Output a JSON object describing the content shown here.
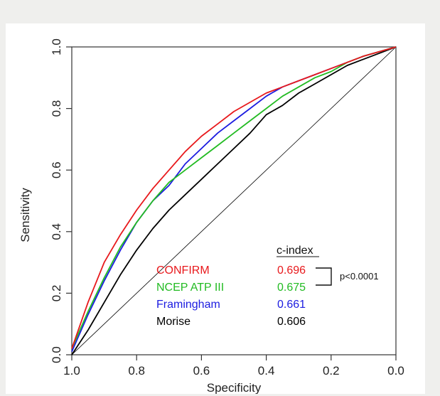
{
  "chart_data": {
    "type": "line",
    "xlabel": "Specificity",
    "ylabel": "Sensitivity",
    "xlim": [
      1.0,
      0.0
    ],
    "ylim": [
      0.0,
      1.0
    ],
    "x_reversed": true,
    "grid": false,
    "xticks": [
      "1.0",
      "0.8",
      "0.6",
      "0.4",
      "0.2",
      "0.0"
    ],
    "yticks": [
      "0.0",
      "0.2",
      "0.4",
      "0.6",
      "0.8",
      "1.0"
    ],
    "series": [
      {
        "name": "CONFIRM",
        "cindex": "0.696",
        "color": "#e8191c",
        "x": [
          1.0,
          0.95,
          0.9,
          0.85,
          0.8,
          0.75,
          0.7,
          0.65,
          0.6,
          0.55,
          0.5,
          0.45,
          0.4,
          0.35,
          0.3,
          0.25,
          0.2,
          0.15,
          0.1,
          0.05,
          0.0
        ],
        "y": [
          0.02,
          0.17,
          0.3,
          0.39,
          0.47,
          0.54,
          0.6,
          0.66,
          0.71,
          0.75,
          0.79,
          0.82,
          0.85,
          0.87,
          0.89,
          0.91,
          0.93,
          0.95,
          0.97,
          0.985,
          1.0
        ]
      },
      {
        "name": "NCEP ATP III",
        "cindex": "0.675",
        "color": "#22bb22",
        "x": [
          1.0,
          0.95,
          0.9,
          0.85,
          0.8,
          0.75,
          0.7,
          0.65,
          0.6,
          0.55,
          0.5,
          0.45,
          0.4,
          0.35,
          0.3,
          0.25,
          0.2,
          0.15,
          0.1,
          0.05,
          0.0
        ],
        "y": [
          0.02,
          0.14,
          0.25,
          0.35,
          0.43,
          0.5,
          0.56,
          0.6,
          0.64,
          0.68,
          0.72,
          0.76,
          0.8,
          0.84,
          0.87,
          0.9,
          0.92,
          0.95,
          0.97,
          0.985,
          1.0
        ]
      },
      {
        "name": "Framingham",
        "cindex": "0.661",
        "color": "#1c1ce0",
        "x": [
          1.0,
          0.95,
          0.9,
          0.85,
          0.8,
          0.75,
          0.7,
          0.65,
          0.6,
          0.55,
          0.5,
          0.45,
          0.4,
          0.35,
          0.3,
          0.25,
          0.2,
          0.15,
          0.1,
          0.05,
          0.0
        ],
        "y": [
          0.01,
          0.13,
          0.24,
          0.34,
          0.43,
          0.5,
          0.55,
          0.62,
          0.67,
          0.72,
          0.76,
          0.8,
          0.84,
          0.87,
          0.89,
          0.91,
          0.93,
          0.95,
          0.97,
          0.985,
          1.0
        ]
      },
      {
        "name": "Morise",
        "cindex": "0.606",
        "color": "#000000",
        "x": [
          1.0,
          0.95,
          0.9,
          0.85,
          0.8,
          0.75,
          0.7,
          0.65,
          0.6,
          0.55,
          0.5,
          0.45,
          0.4,
          0.35,
          0.3,
          0.25,
          0.2,
          0.15,
          0.1,
          0.05,
          0.0
        ],
        "y": [
          0.0,
          0.08,
          0.17,
          0.26,
          0.34,
          0.41,
          0.47,
          0.52,
          0.57,
          0.62,
          0.67,
          0.72,
          0.78,
          0.81,
          0.85,
          0.88,
          0.91,
          0.94,
          0.96,
          0.98,
          1.0
        ]
      },
      {
        "name": "",
        "color": "#000000",
        "x": [
          1.0,
          0.0
        ],
        "y": [
          0.0,
          1.0
        ]
      }
    ],
    "legend_header": "c-index",
    "annotation": "p<0.0001"
  }
}
